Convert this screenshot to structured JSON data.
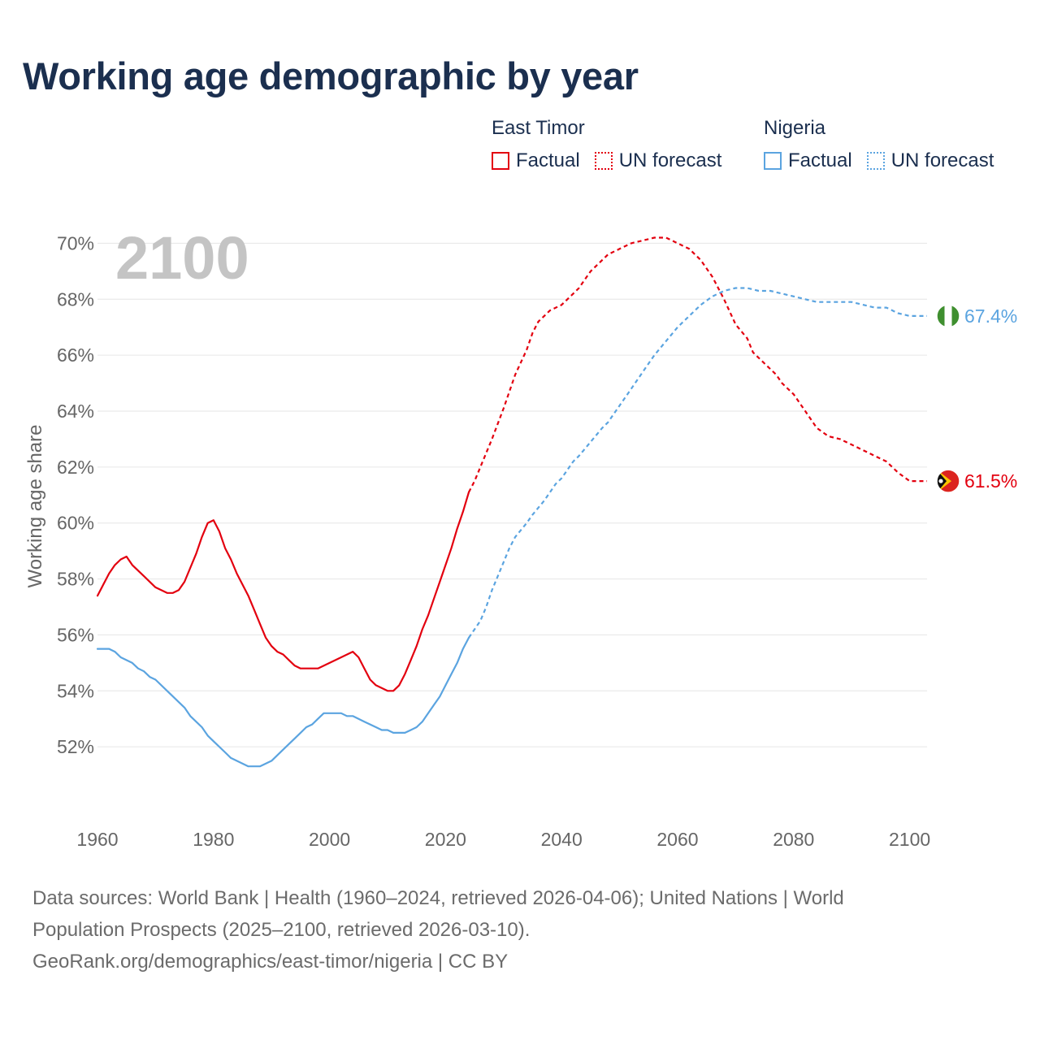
{
  "colors": {
    "east_timor": "#e3000f",
    "nigeria": "#5ba4e0",
    "grid": "#e6e6e6",
    "axis_text": "#666666",
    "title": "#1b2f4f",
    "year_watermark": "#c4c4c4"
  },
  "header": {
    "title": "Working age demographic by year"
  },
  "legend": {
    "groups": [
      {
        "name": "East Timor",
        "factual": "Factual",
        "forecast": "UN forecast"
      },
      {
        "name": "Nigeria",
        "factual": "Factual",
        "forecast": "UN forecast"
      }
    ]
  },
  "chart_data": {
    "type": "line",
    "title": "Working age demographic by year",
    "ylabel": "Working age share",
    "xlabel": "",
    "year_display": "2100",
    "xlim": [
      1960,
      2103
    ],
    "ylim": [
      50,
      71
    ],
    "x_ticks": [
      1960,
      1980,
      2000,
      2020,
      2040,
      2060,
      2080,
      2100
    ],
    "y_ticks": [
      52,
      54,
      56,
      58,
      60,
      62,
      64,
      66,
      68,
      70
    ],
    "y_tick_labels": [
      "52%",
      "54%",
      "56%",
      "58%",
      "60%",
      "62%",
      "64%",
      "66%",
      "68%",
      "70%"
    ],
    "factual_end_year": 2024,
    "series": [
      {
        "name": "East Timor",
        "color_key": "east_timor",
        "end_label": "61.5%",
        "flag_icon": "east-timor-flag-icon",
        "points": [
          [
            1960,
            57.4
          ],
          [
            1962,
            58.2
          ],
          [
            1963,
            58.5
          ],
          [
            1964,
            58.7
          ],
          [
            1965,
            58.8
          ],
          [
            1966,
            58.5
          ],
          [
            1968,
            58.1
          ],
          [
            1970,
            57.7
          ],
          [
            1972,
            57.5
          ],
          [
            1973,
            57.5
          ],
          [
            1974,
            57.6
          ],
          [
            1975,
            57.9
          ],
          [
            1977,
            58.9
          ],
          [
            1978,
            59.5
          ],
          [
            1979,
            60.0
          ],
          [
            1980,
            60.1
          ],
          [
            1981,
            59.7
          ],
          [
            1982,
            59.1
          ],
          [
            1983,
            58.7
          ],
          [
            1984,
            58.2
          ],
          [
            1986,
            57.4
          ],
          [
            1987,
            56.9
          ],
          [
            1988,
            56.4
          ],
          [
            1989,
            55.9
          ],
          [
            1990,
            55.6
          ],
          [
            1991,
            55.4
          ],
          [
            1992,
            55.3
          ],
          [
            1993,
            55.1
          ],
          [
            1994,
            54.9
          ],
          [
            1995,
            54.8
          ],
          [
            1998,
            54.8
          ],
          [
            2000,
            55.0
          ],
          [
            2002,
            55.2
          ],
          [
            2004,
            55.4
          ],
          [
            2005,
            55.2
          ],
          [
            2006,
            54.8
          ],
          [
            2007,
            54.4
          ],
          [
            2008,
            54.2
          ],
          [
            2010,
            54.0
          ],
          [
            2011,
            54.0
          ],
          [
            2012,
            54.2
          ],
          [
            2013,
            54.6
          ],
          [
            2014,
            55.1
          ],
          [
            2015,
            55.6
          ],
          [
            2016,
            56.2
          ],
          [
            2017,
            56.7
          ],
          [
            2018,
            57.3
          ],
          [
            2019,
            57.9
          ],
          [
            2020,
            58.5
          ],
          [
            2021,
            59.1
          ],
          [
            2022,
            59.8
          ],
          [
            2023,
            60.4
          ],
          [
            2024,
            61.1
          ],
          [
            2025,
            61.5
          ],
          [
            2026,
            62.0
          ],
          [
            2028,
            63.0
          ],
          [
            2030,
            64.1
          ],
          [
            2032,
            65.3
          ],
          [
            2034,
            66.2
          ],
          [
            2035,
            66.8
          ],
          [
            2036,
            67.2
          ],
          [
            2037,
            67.4
          ],
          [
            2038,
            67.6
          ],
          [
            2040,
            67.8
          ],
          [
            2042,
            68.2
          ],
          [
            2043,
            68.4
          ],
          [
            2044,
            68.7
          ],
          [
            2045,
            69.0
          ],
          [
            2047,
            69.4
          ],
          [
            2048,
            69.6
          ],
          [
            2050,
            69.8
          ],
          [
            2052,
            70.0
          ],
          [
            2054,
            70.1
          ],
          [
            2056,
            70.2
          ],
          [
            2058,
            70.2
          ],
          [
            2060,
            70.0
          ],
          [
            2062,
            69.8
          ],
          [
            2064,
            69.4
          ],
          [
            2066,
            68.8
          ],
          [
            2068,
            68.0
          ],
          [
            2070,
            67.1
          ],
          [
            2072,
            66.6
          ],
          [
            2073,
            66.1
          ],
          [
            2075,
            65.7
          ],
          [
            2077,
            65.3
          ],
          [
            2078,
            65.0
          ],
          [
            2080,
            64.6
          ],
          [
            2082,
            64.0
          ],
          [
            2084,
            63.4
          ],
          [
            2086,
            63.1
          ],
          [
            2088,
            63.0
          ],
          [
            2090,
            62.8
          ],
          [
            2092,
            62.6
          ],
          [
            2094,
            62.4
          ],
          [
            2096,
            62.2
          ],
          [
            2098,
            61.8
          ],
          [
            2100,
            61.5
          ],
          [
            2103,
            61.5
          ]
        ]
      },
      {
        "name": "Nigeria",
        "color_key": "nigeria",
        "end_label": "67.4%",
        "flag_icon": "nigeria-flag-icon",
        "points": [
          [
            1960,
            55.5
          ],
          [
            1962,
            55.5
          ],
          [
            1963,
            55.4
          ],
          [
            1964,
            55.2
          ],
          [
            1966,
            55.0
          ],
          [
            1967,
            54.8
          ],
          [
            1968,
            54.7
          ],
          [
            1969,
            54.5
          ],
          [
            1970,
            54.4
          ],
          [
            1972,
            54.0
          ],
          [
            1975,
            53.4
          ],
          [
            1976,
            53.1
          ],
          [
            1978,
            52.7
          ],
          [
            1979,
            52.4
          ],
          [
            1980,
            52.2
          ],
          [
            1982,
            51.8
          ],
          [
            1983,
            51.6
          ],
          [
            1986,
            51.3
          ],
          [
            1988,
            51.3
          ],
          [
            1990,
            51.5
          ],
          [
            1992,
            51.9
          ],
          [
            1994,
            52.3
          ],
          [
            1995,
            52.5
          ],
          [
            1996,
            52.7
          ],
          [
            1997,
            52.8
          ],
          [
            1998,
            53.0
          ],
          [
            1999,
            53.2
          ],
          [
            2002,
            53.2
          ],
          [
            2003,
            53.1
          ],
          [
            2004,
            53.1
          ],
          [
            2006,
            52.9
          ],
          [
            2008,
            52.7
          ],
          [
            2009,
            52.6
          ],
          [
            2010,
            52.6
          ],
          [
            2011,
            52.5
          ],
          [
            2013,
            52.5
          ],
          [
            2014,
            52.6
          ],
          [
            2015,
            52.7
          ],
          [
            2016,
            52.9
          ],
          [
            2017,
            53.2
          ],
          [
            2018,
            53.5
          ],
          [
            2019,
            53.8
          ],
          [
            2020,
            54.2
          ],
          [
            2021,
            54.6
          ],
          [
            2022,
            55.0
          ],
          [
            2023,
            55.5
          ],
          [
            2024,
            55.9
          ],
          [
            2025,
            56.2
          ],
          [
            2026,
            56.5
          ],
          [
            2027,
            57.0
          ],
          [
            2028,
            57.6
          ],
          [
            2029,
            58.1
          ],
          [
            2030,
            58.6
          ],
          [
            2031,
            59.1
          ],
          [
            2032,
            59.5
          ],
          [
            2034,
            60.0
          ],
          [
            2035,
            60.3
          ],
          [
            2037,
            60.8
          ],
          [
            2039,
            61.4
          ],
          [
            2040,
            61.6
          ],
          [
            2042,
            62.2
          ],
          [
            2043,
            62.4
          ],
          [
            2045,
            62.9
          ],
          [
            2047,
            63.4
          ],
          [
            2048,
            63.6
          ],
          [
            2050,
            64.2
          ],
          [
            2052,
            64.8
          ],
          [
            2054,
            65.4
          ],
          [
            2056,
            66.0
          ],
          [
            2058,
            66.5
          ],
          [
            2060,
            67.0
          ],
          [
            2062,
            67.4
          ],
          [
            2064,
            67.8
          ],
          [
            2066,
            68.1
          ],
          [
            2068,
            68.3
          ],
          [
            2070,
            68.4
          ],
          [
            2072,
            68.4
          ],
          [
            2074,
            68.3
          ],
          [
            2076,
            68.3
          ],
          [
            2078,
            68.2
          ],
          [
            2080,
            68.1
          ],
          [
            2082,
            68.0
          ],
          [
            2084,
            67.9
          ],
          [
            2086,
            67.9
          ],
          [
            2088,
            67.9
          ],
          [
            2090,
            67.9
          ],
          [
            2092,
            67.8
          ],
          [
            2094,
            67.7
          ],
          [
            2096,
            67.7
          ],
          [
            2098,
            67.5
          ],
          [
            2100,
            67.4
          ],
          [
            2103,
            67.4
          ]
        ]
      }
    ]
  },
  "footer": {
    "source_line1": "Data sources: World Bank | Health (1960–2024, retrieved 2026-04-06); United Nations | World",
    "source_line2": "Population Prospects (2025–2100, retrieved 2026-03-10).",
    "attribution": "GeoRank.org/demographics/east-timor/nigeria | CC BY"
  }
}
